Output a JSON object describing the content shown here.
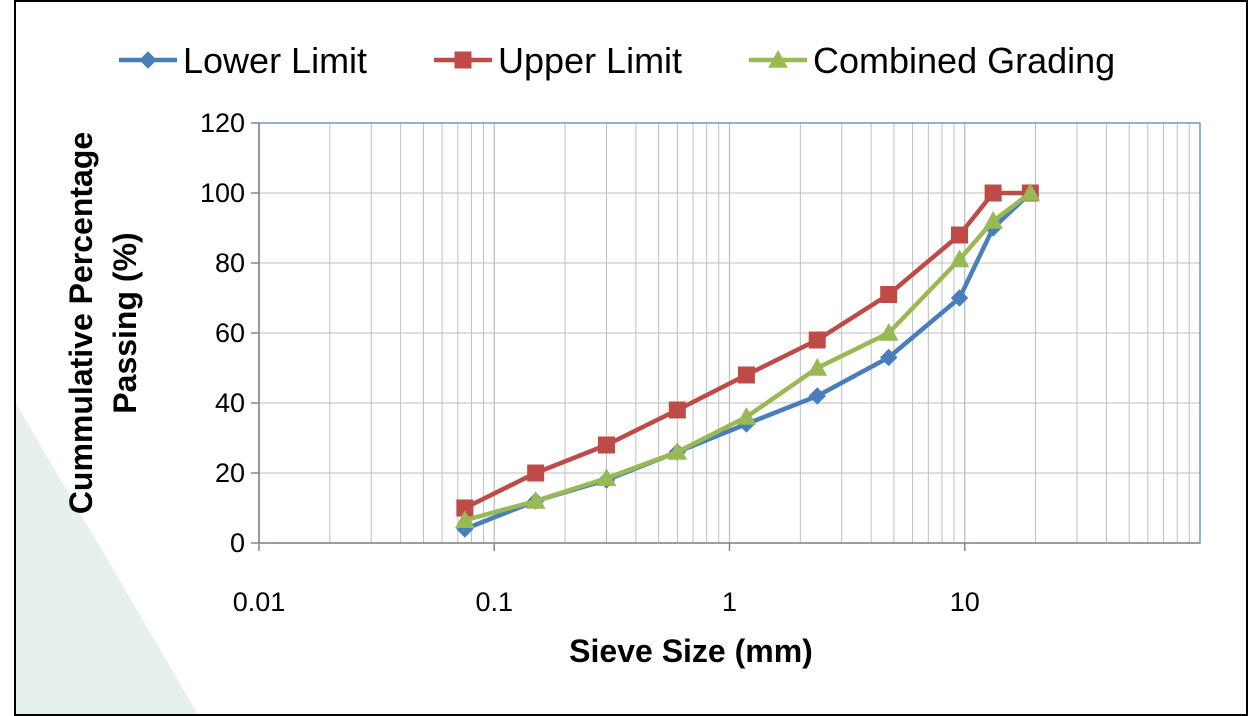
{
  "chart_data": {
    "type": "line",
    "title": "",
    "xlabel": "Sieve Size (mm)",
    "ylabel_lines": [
      "Cummulative Percentage",
      "Passing (%)"
    ],
    "x_scale": "log",
    "xlim": [
      0.01,
      100
    ],
    "ylim": [
      0,
      120
    ],
    "y_ticks": [
      0,
      20,
      40,
      60,
      80,
      100,
      120
    ],
    "x_ticks": [
      0.01,
      0.1,
      1,
      10
    ],
    "x_tick_labels": [
      "0.01",
      "0.1",
      "1",
      "10"
    ],
    "grid": true,
    "legend_position": "top",
    "series": [
      {
        "name": "Lower Limit",
        "color": "#4a7ebb",
        "marker": "diamond",
        "x": [
          0.075,
          0.15,
          0.3,
          0.6,
          1.18,
          2.36,
          4.75,
          9.5,
          13.2,
          19
        ],
        "y": [
          4,
          12,
          18,
          26,
          34,
          42,
          53,
          70,
          90,
          100
        ]
      },
      {
        "name": "Upper Limit",
        "color": "#be4b48",
        "marker": "square",
        "x": [
          0.075,
          0.15,
          0.3,
          0.6,
          1.18,
          2.36,
          4.75,
          9.5,
          13.2,
          19
        ],
        "y": [
          10,
          20,
          28,
          38,
          48,
          58,
          71,
          88,
          100,
          100
        ]
      },
      {
        "name": "Combined Grading",
        "color": "#98b954",
        "marker": "triangle",
        "x": [
          0.075,
          0.15,
          0.3,
          0.6,
          1.18,
          2.36,
          4.75,
          9.5,
          13.2,
          19
        ],
        "y": [
          6.5,
          12,
          18.5,
          26,
          36,
          50,
          60,
          81,
          92,
          100
        ]
      }
    ]
  },
  "colors": {
    "plot_border": "#4a7ebb",
    "grid": "#bfbfbf",
    "axis": "#868686",
    "background_shape": "#e6f0ef"
  }
}
